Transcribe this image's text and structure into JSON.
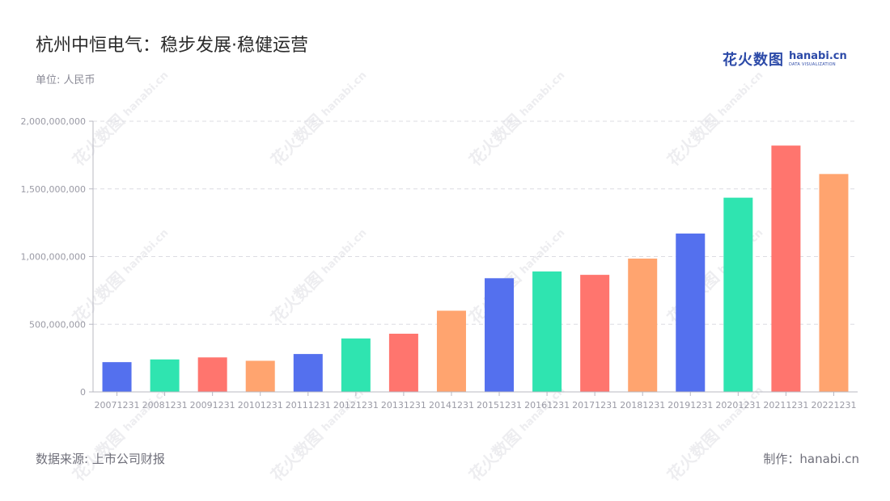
{
  "header": {
    "title": "杭州中恒电气：稳步发展·稳健运营",
    "unit": "单位: 人民币"
  },
  "footer": {
    "source": "数据来源: 上市公司财报",
    "maker": "制作：hanabi.cn"
  },
  "logo": {
    "cn": "花火数图",
    "en": "hanabi.cn",
    "sub": "DATA VISUALIZATION"
  },
  "watermark": {
    "cn": "花火数图",
    "en": "hanabi.cn"
  },
  "colors": {
    "blue": "#5470ee",
    "green": "#2fe4b0",
    "red": "#ff756e",
    "orange": "#ffa46f",
    "grid": "#dcdce2",
    "axis": "#b8b8c2"
  },
  "chart_data": {
    "type": "bar",
    "categories": [
      "20071231",
      "20081231",
      "20091231",
      "20101231",
      "20111231",
      "20121231",
      "20131231",
      "20141231",
      "20151231",
      "20161231",
      "20171231",
      "20181231",
      "20191231",
      "20201231",
      "20211231",
      "20221231"
    ],
    "values": [
      220000000,
      240000000,
      255000000,
      230000000,
      280000000,
      395000000,
      430000000,
      600000000,
      840000000,
      890000000,
      865000000,
      985000000,
      1170000000,
      1435000000,
      1820000000,
      1610000000
    ],
    "bar_colors": [
      "#5470ee",
      "#2fe4b0",
      "#ff756e",
      "#ffa46f",
      "#5470ee",
      "#2fe4b0",
      "#ff756e",
      "#ffa46f",
      "#5470ee",
      "#2fe4b0",
      "#ff756e",
      "#ffa46f",
      "#5470ee",
      "#2fe4b0",
      "#ff756e",
      "#ffa46f"
    ],
    "ylim": [
      0,
      2000000000
    ],
    "yticks": [
      0,
      500000000,
      1000000000,
      1500000000,
      2000000000
    ],
    "ytick_labels": [
      "0",
      "500,000,000",
      "1,000,000,000",
      "1,500,000,000",
      "2,000,000,000"
    ],
    "grid": true,
    "title": "",
    "xlabel": "",
    "ylabel": ""
  }
}
